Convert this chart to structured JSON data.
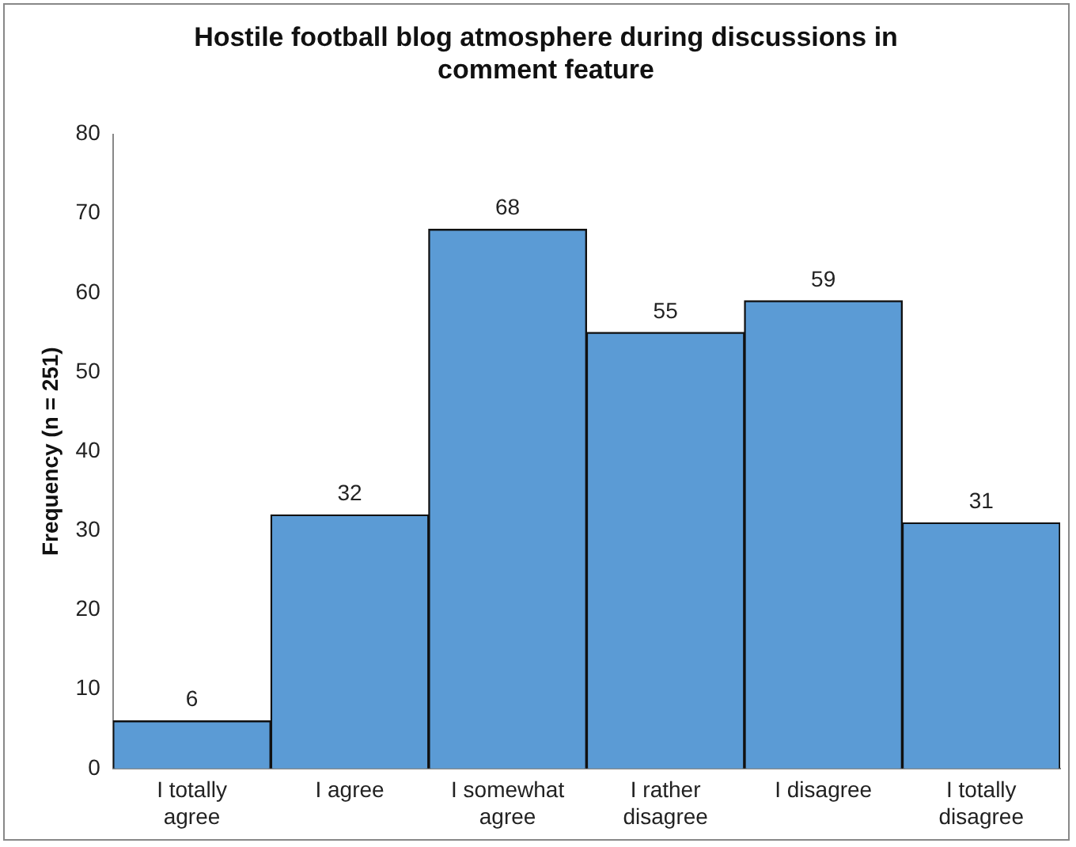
{
  "chart_data": {
    "type": "bar",
    "title": "Hostile football blog atmosphere during discussions in comment feature",
    "ylabel": "Frequency (n = 251)",
    "categories": [
      "I totally agree",
      "I agree",
      "I somewhat agree",
      "I rather disagree",
      "I disagree",
      "I totally disagree"
    ],
    "values": [
      6,
      32,
      68,
      55,
      59,
      31
    ],
    "color": "#5b9bd5",
    "ylim": [
      0,
      80
    ],
    "yticks": [
      0,
      10,
      20,
      30,
      40,
      50,
      60,
      70,
      80
    ],
    "grid": false,
    "data_labels": true
  }
}
